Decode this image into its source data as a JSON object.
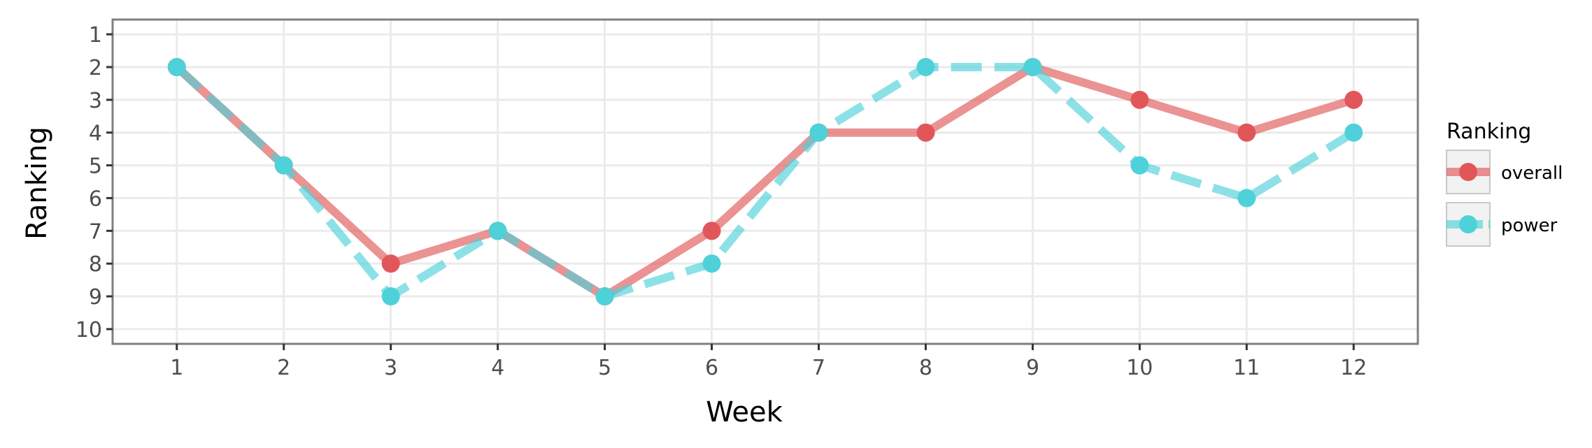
{
  "chart_data": {
    "type": "line",
    "xlabel": "Week",
    "ylabel": "Ranking",
    "x": [
      1,
      2,
      3,
      4,
      5,
      6,
      7,
      8,
      9,
      10,
      11,
      12
    ],
    "xlim": [
      0.4,
      12.6
    ],
    "ylim": [
      10.45,
      0.55
    ],
    "y_reversed": true,
    "y_ticks": [
      1,
      2,
      3,
      4,
      5,
      6,
      7,
      8,
      9,
      10
    ],
    "grid": true,
    "legend": {
      "title": "Ranking",
      "position": "right"
    },
    "series": [
      {
        "name": "overall",
        "color": "#e15759",
        "line_style": "solid",
        "values": [
          2,
          5,
          8,
          7,
          9,
          7,
          4,
          4,
          2,
          3,
          4,
          3
        ]
      },
      {
        "name": "power",
        "color": "#4fd1d9",
        "line_style": "dashed",
        "values": [
          2,
          5,
          9,
          7,
          9,
          8,
          4,
          2,
          2,
          5,
          6,
          4
        ]
      }
    ]
  }
}
